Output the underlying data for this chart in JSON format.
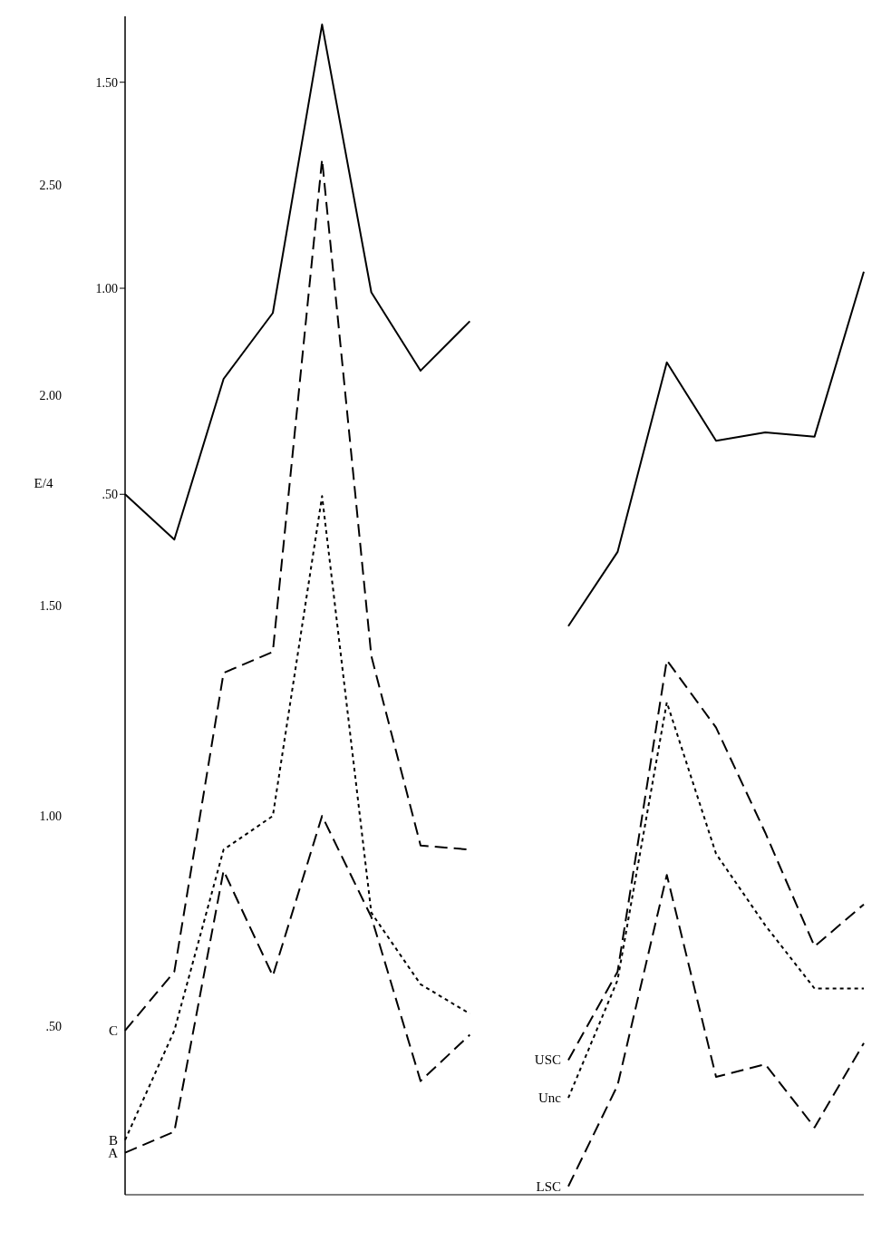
{
  "chart_data": [
    {
      "type": "line",
      "ylabel": "E/4",
      "categories": [
        null,
        null,
        null,
        null,
        null,
        null,
        null,
        null,
        null,
        null,
        null,
        null,
        null,
        null,
        null,
        null
      ],
      "series": [
        {
          "color": "#000000",
          "line_style": "solid",
          "values": [
            0.5,
            0.39,
            0.78,
            0.94,
            1.64,
            0.99,
            0.8,
            0.92,
            null,
            null,
            null,
            null,
            null,
            null,
            null,
            null
          ]
        },
        {
          "color": "#000000",
          "line_style": "solid",
          "values": [
            null,
            null,
            null,
            null,
            null,
            null,
            null,
            null,
            null,
            0.18,
            0.36,
            0.82,
            0.63,
            0.65,
            0.64,
            1.04
          ]
        }
      ],
      "ylim": [
        -1.2,
        1.66
      ],
      "yticks": [
        {
          "value": 0.5,
          "label": ".50"
        },
        {
          "value": 1,
          "label": "1.00"
        },
        {
          "value": 1.5,
          "label": "1.50"
        }
      ],
      "grid": false,
      "legend": false,
      "marker": "none",
      "tick_labels": "y"
    },
    {
      "type": "line",
      "categories": [
        null,
        null,
        null,
        null,
        null,
        null,
        null,
        null,
        null,
        null,
        null,
        null,
        null,
        null,
        null,
        null
      ],
      "series": [
        {
          "name": "C",
          "color": "#000000",
          "line_style": "dashed",
          "values": [
            0.49,
            0.63,
            1.34,
            1.39,
            2.56,
            1.38,
            0.93,
            0.92,
            null,
            null,
            null,
            null,
            null,
            null,
            null,
            null
          ]
        },
        {
          "name": "B",
          "color": "#000000",
          "line_style": "dotted",
          "values": [
            0.23,
            0.49,
            0.92,
            1.0,
            1.76,
            0.77,
            0.6,
            0.53,
            null,
            null,
            null,
            null,
            null,
            null,
            null,
            null
          ]
        },
        {
          "name": "A",
          "color": "#000000",
          "line_style": "dashed",
          "values": [
            0.2,
            0.25,
            0.87,
            0.62,
            1.0,
            0.76,
            0.37,
            0.48,
            null,
            null,
            null,
            null,
            null,
            null,
            null,
            null
          ]
        },
        {
          "name": "USC",
          "color": "#000000",
          "line_style": "dashed",
          "values": [
            null,
            null,
            null,
            null,
            null,
            null,
            null,
            null,
            null,
            0.42,
            0.63,
            1.37,
            1.21,
            0.96,
            0.69,
            0.79
          ]
        },
        {
          "name": "Unc",
          "color": "#000000",
          "line_style": "dotted",
          "values": [
            null,
            null,
            null,
            null,
            null,
            null,
            null,
            null,
            null,
            0.33,
            0.61,
            1.27,
            0.91,
            0.74,
            0.59,
            0.59
          ]
        },
        {
          "name": "LSC",
          "color": "#000000",
          "line_style": "dashed",
          "values": [
            null,
            null,
            null,
            null,
            null,
            null,
            null,
            null,
            null,
            0.12,
            0.36,
            0.86,
            0.38,
            0.41,
            0.26,
            0.46
          ]
        }
      ],
      "ylim": [
        0.1,
        2.9
      ],
      "yticks": [
        {
          "value": 0.5,
          "label": ".50"
        },
        {
          "value": 1,
          "label": "1.00"
        },
        {
          "value": 1.5,
          "label": "1.50"
        },
        {
          "value": 2,
          "label": "2.00"
        },
        {
          "value": 2.5,
          "label": "2.50"
        }
      ],
      "grid": false,
      "legend": false,
      "marker": "none",
      "tick_labels": "y"
    }
  ]
}
